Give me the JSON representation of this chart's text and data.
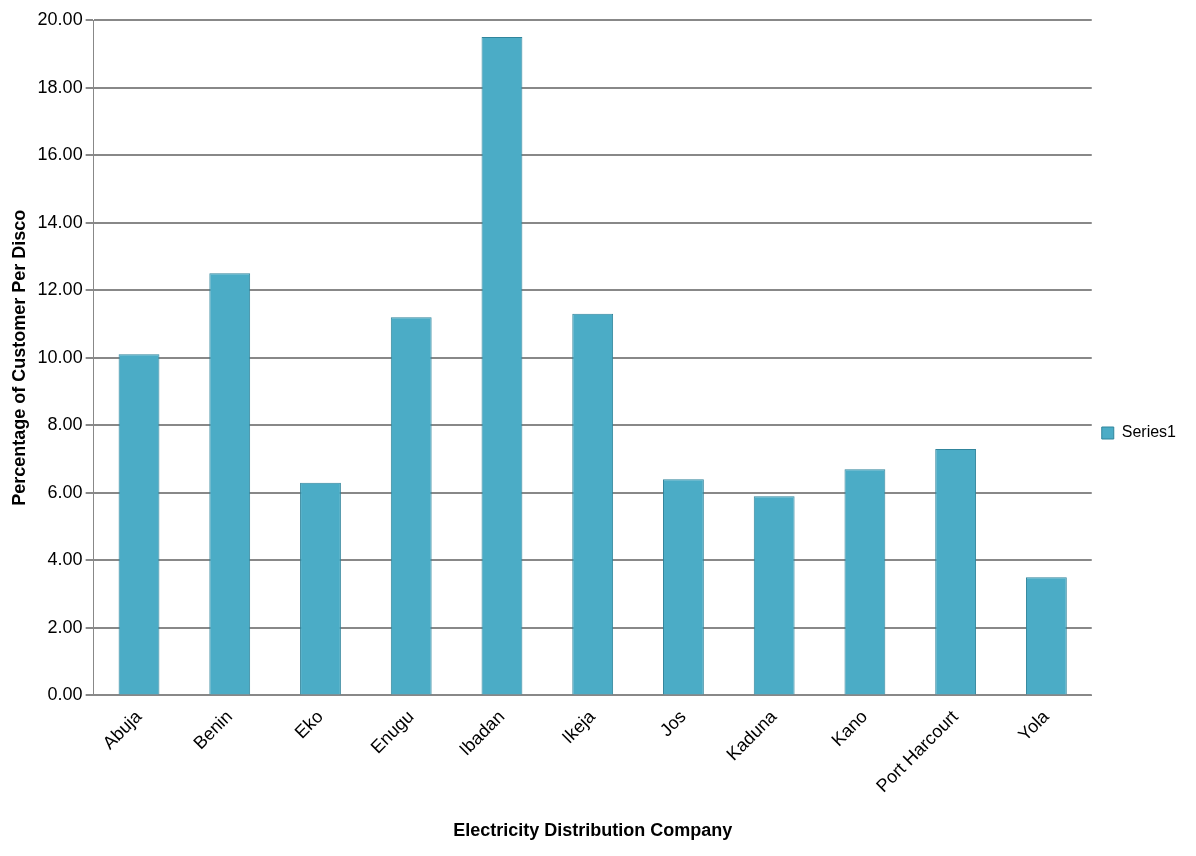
{
  "chart_data": {
    "type": "bar",
    "xlabel": "Electricity Distribution Company",
    "ylabel": "Percentage of Customer Per Disco",
    "categories": [
      "Abuja",
      "Benin",
      "Eko",
      "Enugu",
      "Ibadan",
      "Ikeja",
      "Jos",
      "Kaduna",
      "Kano",
      "Port Harcourt",
      "Yola"
    ],
    "series": [
      {
        "name": "Series1",
        "color": "#4bacc6",
        "values": [
          10.1,
          12.5,
          6.3,
          11.2,
          19.5,
          11.3,
          6.4,
          5.9,
          6.7,
          7.3,
          3.5
        ]
      }
    ],
    "ylim": [
      0,
      20
    ],
    "yticks": [
      {
        "value": 0,
        "label": "0.00"
      },
      {
        "value": 2,
        "label": "2.00"
      },
      {
        "value": 4,
        "label": "4.00"
      },
      {
        "value": 6,
        "label": "6.00"
      },
      {
        "value": 8,
        "label": "8.00"
      },
      {
        "value": 10,
        "label": "10.00"
      },
      {
        "value": 12,
        "label": "12.00"
      },
      {
        "value": 14,
        "label": "14.00"
      },
      {
        "value": 16,
        "label": "16.00"
      },
      {
        "value": 18,
        "label": "18.00"
      },
      {
        "value": 20,
        "label": "20.00"
      }
    ],
    "grid": "y",
    "legend": "right"
  }
}
